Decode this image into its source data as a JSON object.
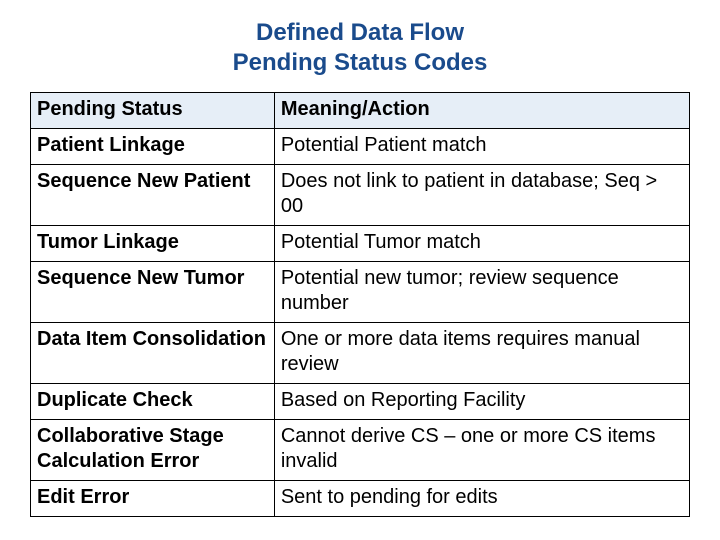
{
  "title_line1": "Defined Data Flow",
  "title_line2": "Pending Status Codes",
  "table": {
    "header_bg": "#e6eef7",
    "border_color": "#000000",
    "title_color": "#1a4b8c",
    "columns": [
      "Pending Status",
      "Meaning/Action"
    ],
    "rows": [
      {
        "status": "Patient Linkage",
        "meaning": "Potential Patient match"
      },
      {
        "status": "Sequence New Patient",
        "meaning": "Does not link to patient in database; Seq > 00"
      },
      {
        "status": "Tumor Linkage",
        "meaning": "Potential Tumor match"
      },
      {
        "status": "Sequence New Tumor",
        "meaning": "Potential new tumor; review sequence number"
      },
      {
        "status": "Data Item Consolidation",
        "meaning": "One or more data items requires manual review"
      },
      {
        "status": "Duplicate Check",
        "meaning": "Based on Reporting Facility"
      },
      {
        "status": "Collaborative Stage Calculation Error",
        "meaning": "Cannot derive CS – one or more CS items invalid"
      },
      {
        "status": "Edit Error",
        "meaning": "Sent to pending for edits"
      }
    ]
  }
}
